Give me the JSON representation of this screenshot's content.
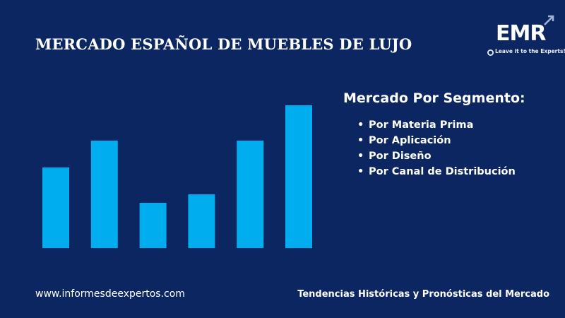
{
  "header": {
    "title": "MERCADO ESPAÑOL DE MUEBLES DE LUJO"
  },
  "logo": {
    "mark": "EMR",
    "tagline": "Leave it to the Experts!",
    "arrow_icon": "arrow-up-right-icon",
    "pin_icon": "location-pin-icon"
  },
  "segment": {
    "heading": "Mercado Por Segmento:",
    "items": [
      "Por Materia Prima",
      "Por Aplicación",
      "Por Diseño",
      "Por Canal de Distribución"
    ]
  },
  "footer": {
    "website": "www.informesdeexpertos.com",
    "tagline": "Tendencias Históricas y Pronósticas del Mercado"
  },
  "colors": {
    "background": "#0b2660",
    "bar": "#00adef",
    "text": "#ffffff"
  },
  "chart_data": {
    "type": "bar",
    "categories": [
      "",
      "",
      "",
      "",
      "",
      ""
    ],
    "values": [
      57,
      76,
      32,
      38,
      76,
      101
    ],
    "ylim": [
      0,
      101
    ],
    "grid": false,
    "legend": "none",
    "title": "",
    "xlabel": "",
    "ylabel": ""
  }
}
